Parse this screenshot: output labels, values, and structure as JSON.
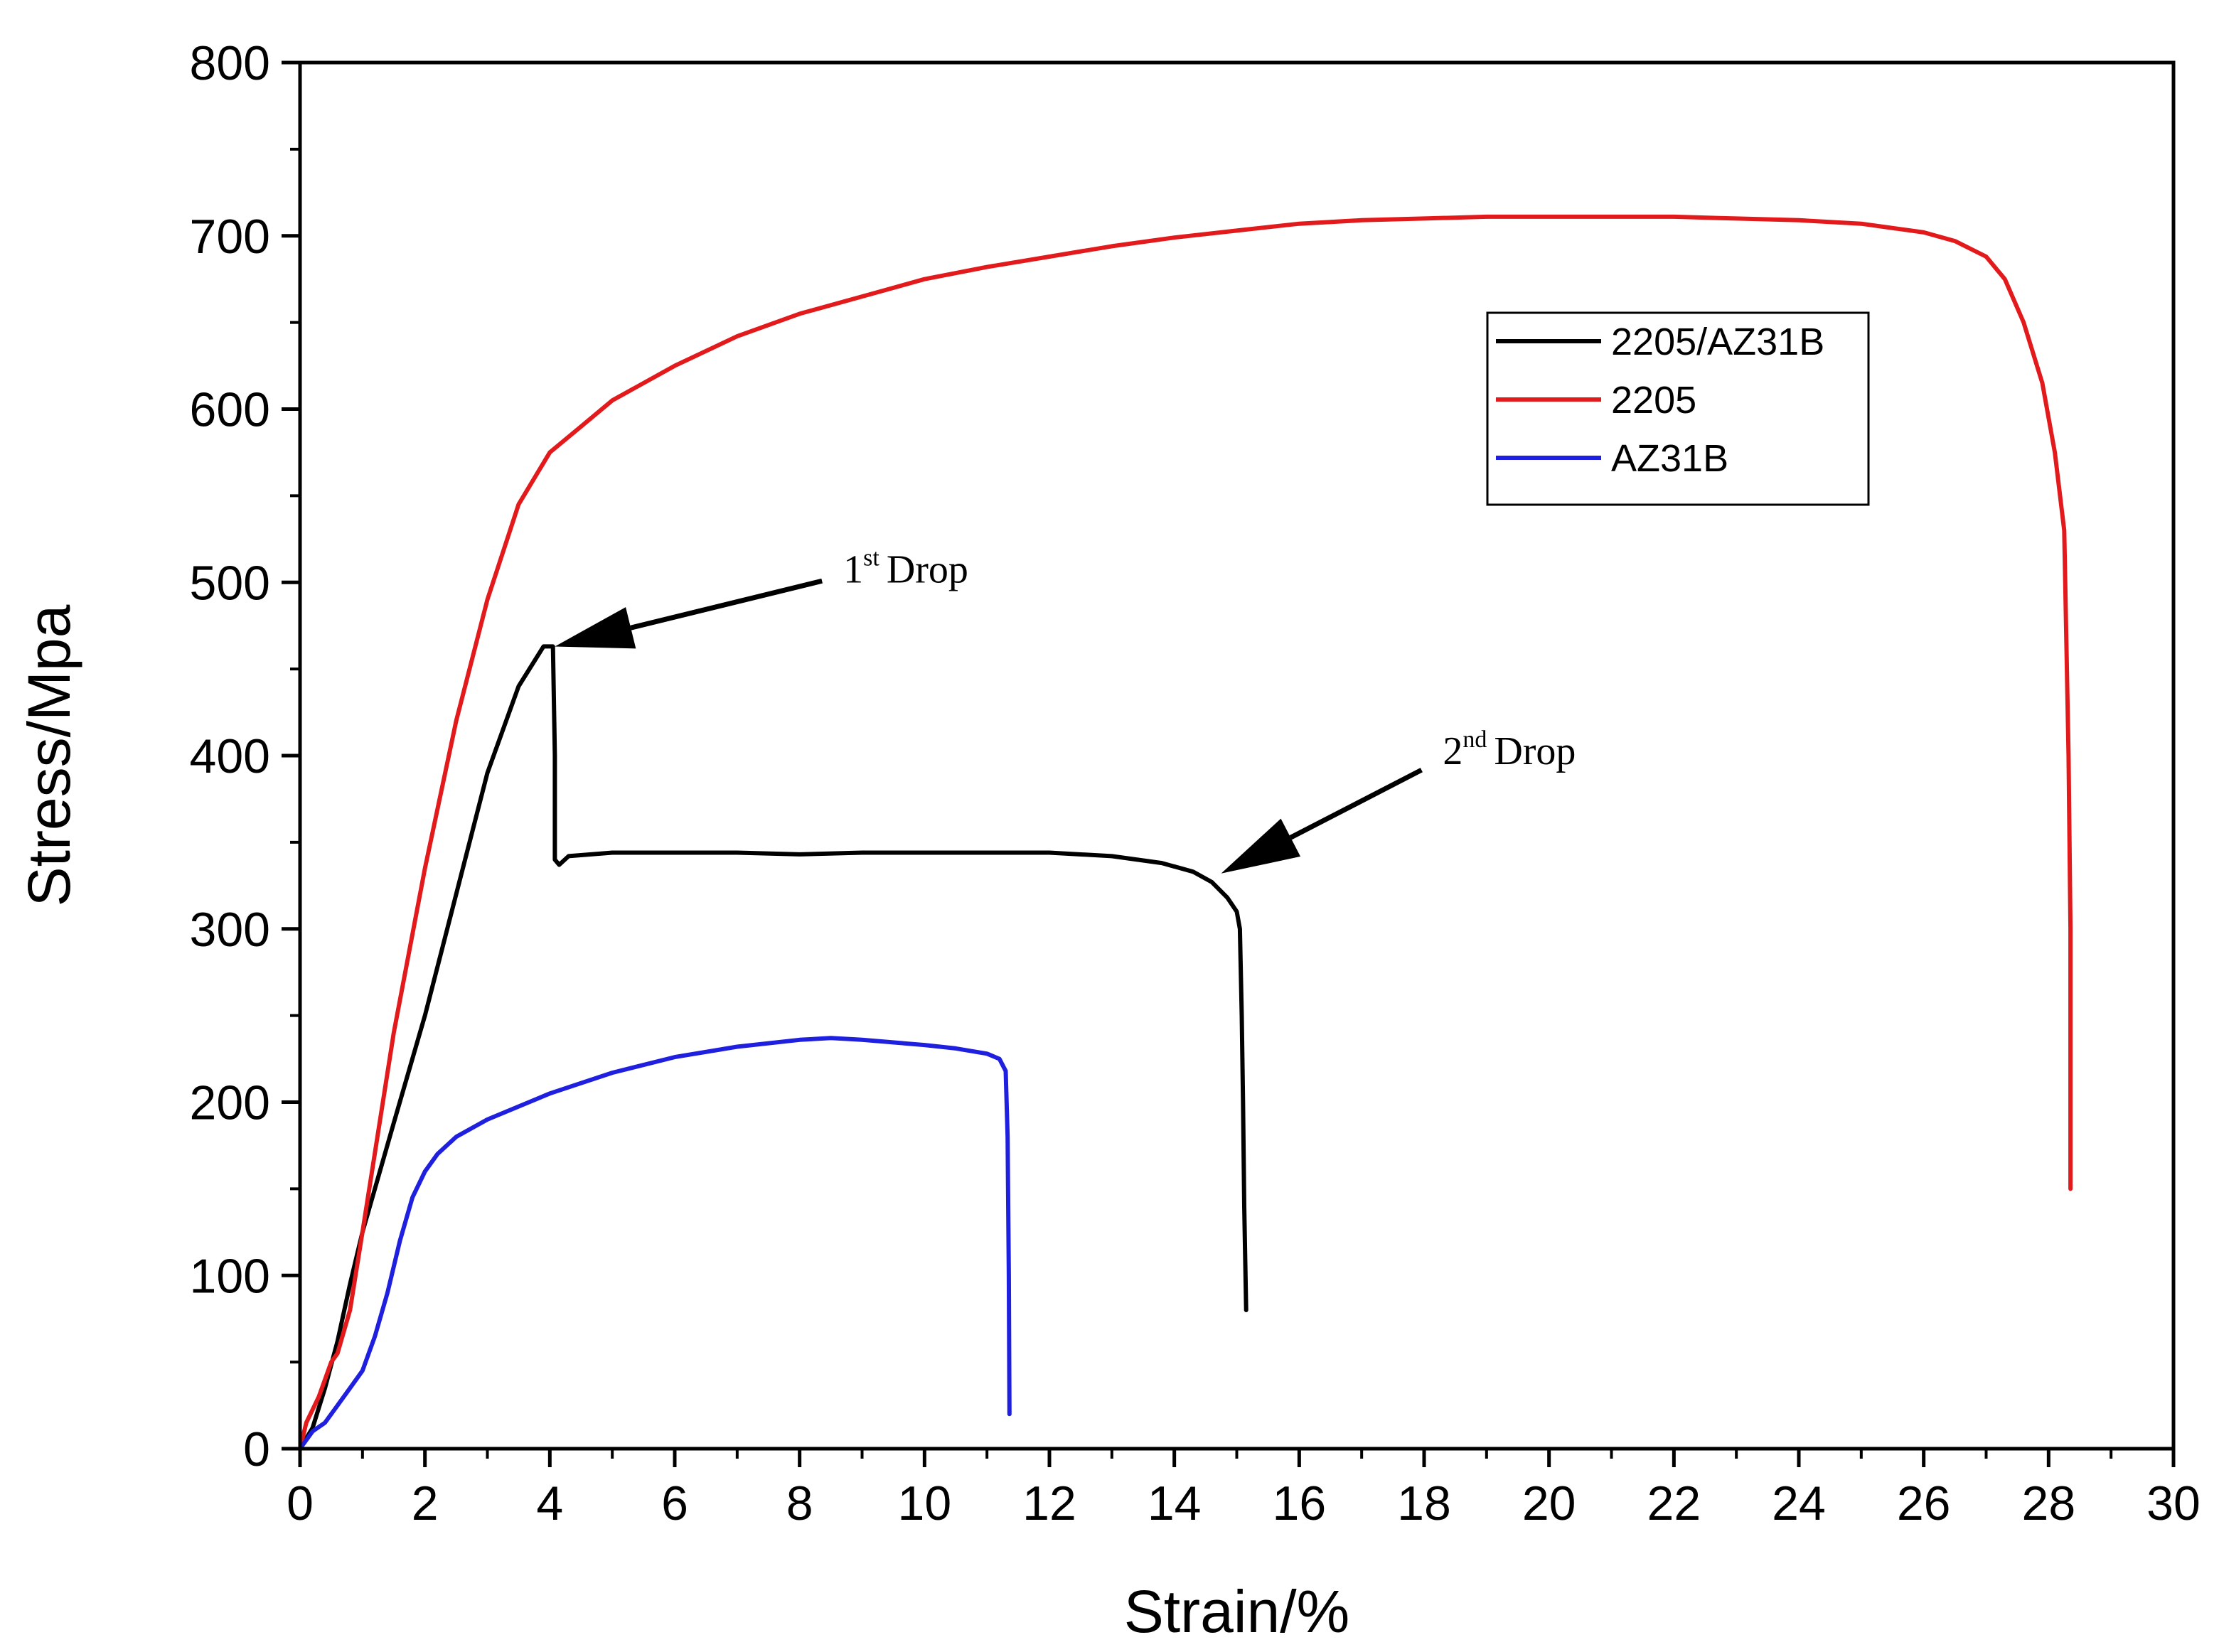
{
  "chart_data": {
    "type": "line",
    "title": "",
    "xlabel": "Strain/%",
    "ylabel": "Stress/Mpa",
    "xlim": [
      0,
      30
    ],
    "ylim": [
      0,
      800
    ],
    "xticks": [
      0,
      2,
      4,
      6,
      8,
      10,
      12,
      14,
      16,
      18,
      20,
      22,
      24,
      26,
      28,
      30
    ],
    "yticks": [
      0,
      100,
      200,
      300,
      400,
      500,
      600,
      700,
      800
    ],
    "grid": false,
    "legend_position": "upper-right",
    "series": [
      {
        "name": "2205/AZ31B",
        "color": "#000000",
        "x": [
          0,
          0.2,
          0.4,
          0.6,
          0.8,
          1.0,
          1.5,
          2.0,
          2.5,
          3.0,
          3.5,
          3.9,
          4.05,
          4.08,
          4.08,
          4.15,
          4.3,
          5,
          6,
          7,
          8,
          9,
          10,
          11,
          12,
          13,
          13.8,
          14.3,
          14.6,
          14.85,
          15.0,
          15.05,
          15.08,
          15.1,
          15.12,
          15.15
        ],
        "y": [
          0,
          12,
          35,
          62,
          95,
          125,
          188,
          250,
          320,
          390,
          440,
          463,
          463,
          400,
          340,
          337,
          342,
          344,
          344,
          344,
          343,
          344,
          344,
          344,
          344,
          342,
          338,
          333,
          327,
          318,
          310,
          300,
          250,
          200,
          140,
          80
        ]
      },
      {
        "name": "2205",
        "color": "#e31a1c",
        "x": [
          0,
          0.1,
          0.3,
          0.5,
          0.6,
          0.8,
          1.0,
          1.5,
          2.0,
          2.5,
          3.0,
          3.5,
          4.0,
          4.5,
          5,
          6,
          7,
          8,
          9,
          10,
          11,
          12,
          13,
          14,
          15,
          16,
          17,
          18,
          19,
          20,
          21,
          22,
          23,
          24,
          25,
          26,
          26.5,
          27,
          27.3,
          27.6,
          27.9,
          28.1,
          28.25,
          28.32,
          28.35,
          28.35,
          28.35
        ],
        "y": [
          0,
          15,
          30,
          50,
          55,
          80,
          125,
          240,
          335,
          420,
          490,
          545,
          575,
          590,
          605,
          625,
          642,
          655,
          665,
          675,
          682,
          688,
          694,
          699,
          703,
          707,
          709,
          710,
          711,
          711,
          711,
          711,
          710,
          709,
          707,
          702,
          697,
          688,
          675,
          650,
          615,
          575,
          530,
          400,
          300,
          200,
          150
        ]
      },
      {
        "name": "AZ31B",
        "color": "#1f1fe0",
        "x": [
          0,
          0.2,
          0.4,
          0.6,
          0.8,
          1.0,
          1.2,
          1.4,
          1.6,
          1.8,
          2.0,
          2.2,
          2.5,
          3,
          4,
          5,
          6,
          7,
          8,
          8.5,
          9,
          10,
          10.5,
          11,
          11.2,
          11.3,
          11.33,
          11.35,
          11.36
        ],
        "y": [
          0,
          10,
          15,
          25,
          35,
          45,
          65,
          90,
          120,
          145,
          160,
          170,
          180,
          190,
          205,
          217,
          226,
          232,
          236,
          237,
          236,
          233,
          231,
          228,
          225,
          218,
          180,
          100,
          20
        ]
      }
    ],
    "annotations": [
      {
        "label": "Drop",
        "ordinal": "1",
        "superscript": "st",
        "text_at": [
          8.7,
          500
        ],
        "arrow_to": [
          4.08,
          463
        ]
      },
      {
        "label": "Drop",
        "ordinal": "2",
        "superscript": "nd",
        "text_at": [
          18.3,
          395
        ],
        "arrow_to": [
          14.75,
          332
        ]
      }
    ]
  }
}
